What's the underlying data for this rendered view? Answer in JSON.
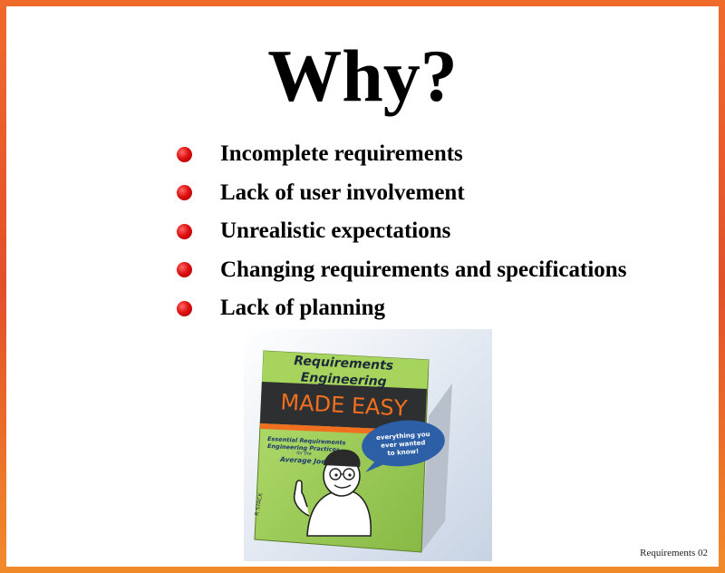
{
  "slide": {
    "title": "Why?",
    "bullets": [
      "Incomplete requirements",
      "Lack of user involvement",
      "Unrealistic expectations",
      "Changing requirements and specifications",
      "Lack of planning"
    ],
    "footer": "Requirements 02"
  },
  "book": {
    "title_line1": "Requirements",
    "title_line2": "Engineering",
    "title_line3": "MADE EASY",
    "subtitle_line1": "Essential Requirements",
    "subtitle_line2": "Engineering Practices",
    "subtitle_line3": "for the",
    "subtitle_line4": "Average Joe",
    "bubble_line1": "everything you",
    "bubble_line2": "ever wanted",
    "bubble_line3": "to know!",
    "signature": "R STACK"
  },
  "colors": {
    "border": "#e8602c",
    "bullet": "#e01010",
    "book_green": "#9acb52",
    "book_dark": "#2e2f30",
    "accent_orange": "#f07020",
    "bubble_blue": "#2d5fa6"
  }
}
